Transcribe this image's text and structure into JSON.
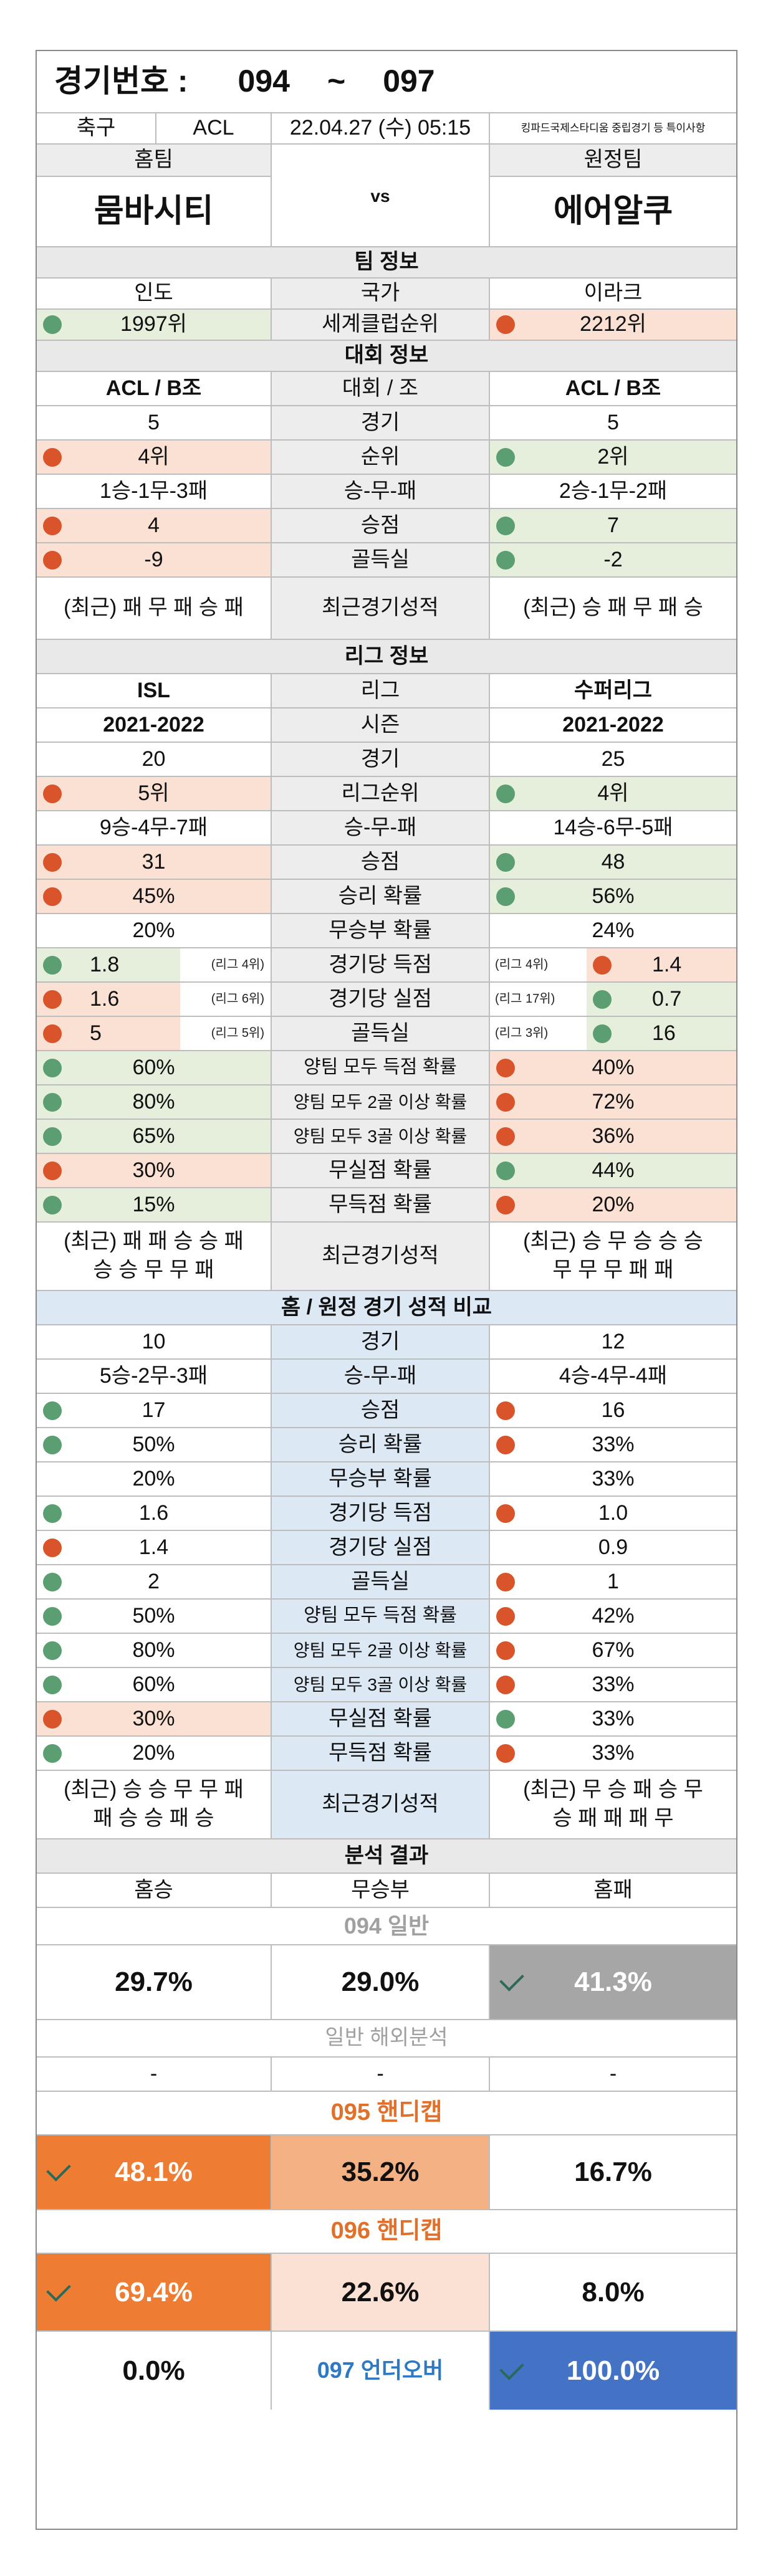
{
  "header": {
    "title_label": "경기번호 :",
    "game_from": "094",
    "tilde": "~",
    "game_to": "097",
    "sport": "축구",
    "league": "ACL",
    "datetime": "22.04.27 (수) 05:15",
    "notice": "킹파드국제스타디움 중립경기 등 특이사항"
  },
  "teams": {
    "home_label": "홈팀",
    "away_label": "원정팀",
    "home_name": "뭄바시티",
    "vs": "vs",
    "away_name": "에어알쿠"
  },
  "team_info": {
    "section": "팀 정보",
    "country_label": "국가",
    "home_country": "인도",
    "away_country": "이라크",
    "rank_label": "세계클럽순위",
    "home_rank": "1997위",
    "away_rank": "2212위"
  },
  "tournament": {
    "section": "대회 정보",
    "group_label": "대회 / 조",
    "home_group": "ACL / B조",
    "away_group": "ACL / B조",
    "games_label": "경기",
    "home_games": "5",
    "away_games": "5",
    "pos_label": "순위",
    "home_pos": "4위",
    "away_pos": "2위",
    "wdl_label": "승-무-패",
    "home_wdl": "1승-1무-3패",
    "away_wdl": "2승-1무-2패",
    "pts_label": "승점",
    "home_pts": "4",
    "away_pts": "7",
    "gd_label": "골득실",
    "home_gd": "-9",
    "away_gd": "-2",
    "recent_label": "최근경기성적",
    "home_recent": "(최근) 패 무 패 승 패",
    "away_recent": "(최근) 승 패 무 패 승"
  },
  "league_info": {
    "section": "리그 정보",
    "league_label": "리그",
    "home_league": "ISL",
    "away_league": "수퍼리그",
    "season_label": "시즌",
    "home_season": "2021-2022",
    "away_season": "2021-2022",
    "games_label": "경기",
    "home_games": "20",
    "away_games": "25",
    "rank_label": "리그순위",
    "home_rank": "5위",
    "away_rank": "4위",
    "wdl_label": "승-무-패",
    "home_wdl": "9승-4무-7패",
    "away_wdl": "14승-6무-5패",
    "pts_label": "승점",
    "home_pts": "31",
    "away_pts": "48",
    "winp_label": "승리 확률",
    "home_winp": "45%",
    "away_winp": "56%",
    "drawp_label": "무승부 확률",
    "home_drawp": "20%",
    "away_drawp": "24%",
    "gf_label": "경기당 득점",
    "home_gf": "1.8",
    "home_gf_note": "(리그 4위)",
    "away_gf": "1.4",
    "away_gf_note": "(리그 4위)",
    "ga_label": "경기당 실점",
    "home_ga": "1.6",
    "home_ga_note": "(리그 6위)",
    "away_ga": "0.7",
    "away_ga_note": "(리그 17위)",
    "gd_label": "골득실",
    "home_gd": "5",
    "home_gd_note": "(리그 5위)",
    "away_gd": "16",
    "away_gd_note": "(리그 3위)",
    "btts_label": "양팀 모두 득점 확률",
    "home_btts": "60%",
    "away_btts": "40%",
    "b2_label": "양팀 모두 2골 이상 확률",
    "home_b2": "80%",
    "away_b2": "72%",
    "b3_label": "양팀 모두 3골 이상 확률",
    "home_b3": "65%",
    "away_b3": "36%",
    "cs_label": "무실점 확률",
    "home_cs": "30%",
    "away_cs": "44%",
    "fs_label": "무득점 확률",
    "home_fs": "15%",
    "away_fs": "20%",
    "recent_label": "최근경기성적",
    "home_recent1": "(최근) 패 패 승 승 패",
    "home_recent2": "승 승 무 무 패",
    "away_recent1": "(최근) 승 무 승 승 승",
    "away_recent2": "무 무 무 패 패"
  },
  "home_away": {
    "section": "홈 / 원정 경기 성적 비교",
    "games_label": "경기",
    "home_games": "10",
    "away_games": "12",
    "wdl_label": "승-무-패",
    "home_wdl": "5승-2무-3패",
    "away_wdl": "4승-4무-4패",
    "pts_label": "승점",
    "home_pts": "17",
    "away_pts": "16",
    "winp_label": "승리 확률",
    "home_winp": "50%",
    "away_winp": "33%",
    "drawp_label": "무승부 확률",
    "home_drawp": "20%",
    "away_drawp": "33%",
    "gf_label": "경기당 득점",
    "home_gf": "1.6",
    "away_gf": "1.0",
    "ga_label": "경기당 실점",
    "home_ga": "1.4",
    "away_ga": "0.9",
    "gd_label": "골득실",
    "home_gd": "2",
    "away_gd": "1",
    "btts_label": "양팀 모두 득점 확률",
    "home_btts": "50%",
    "away_btts": "42%",
    "b2_label": "양팀 모두 2골 이상 확률",
    "home_b2": "80%",
    "away_b2": "67%",
    "b3_label": "양팀 모두 3골 이상 확률",
    "home_b3": "60%",
    "away_b3": "33%",
    "cs_label": "무실점 확률",
    "home_cs": "30%",
    "away_cs": "33%",
    "fs_label": "무득점 확률",
    "home_fs": "20%",
    "away_fs": "33%",
    "recent_label": "최근경기성적",
    "home_recent1": "(최근) 승 승 무 무 패",
    "home_recent2": "패 승 승 패 승",
    "away_recent1": "(최근) 무 승 패 승 무",
    "away_recent2": "승 패 패 패 무"
  },
  "analysis": {
    "section": "분석 결과",
    "col_home_win": "홈승",
    "col_draw": "무승부",
    "col_home_loss": "홈패",
    "g094_label": "094 일반",
    "g094_win": "29.7%",
    "g094_draw": "29.0%",
    "g094_loss": "41.3%",
    "overseas_label": "일반 해외분석",
    "ov_win": "-",
    "ov_draw": "-",
    "ov_loss": "-",
    "g095_label": "095 핸디캡",
    "g095_win": "48.1%",
    "g095_draw": "35.2%",
    "g095_loss": "16.7%",
    "g096_label": "096 핸디캡",
    "g096_win": "69.4%",
    "g096_draw": "22.6%",
    "g096_loss": "8.0%",
    "g097_label": "097 언더오버",
    "g097_under": "0.0%",
    "g097_over": "100.0%"
  },
  "colors": {
    "green_bg": "#e6efdc",
    "peach_bg": "#fbe1d4",
    "green_dot": "#5a9e72",
    "orange_dot": "#d9542a",
    "orange_strong": "#ee7d33",
    "orange_mid": "#f4b183",
    "orange_light": "#fbe1d4",
    "gray_cell": "#a6a6a6",
    "blue_cell": "#4472c4"
  }
}
